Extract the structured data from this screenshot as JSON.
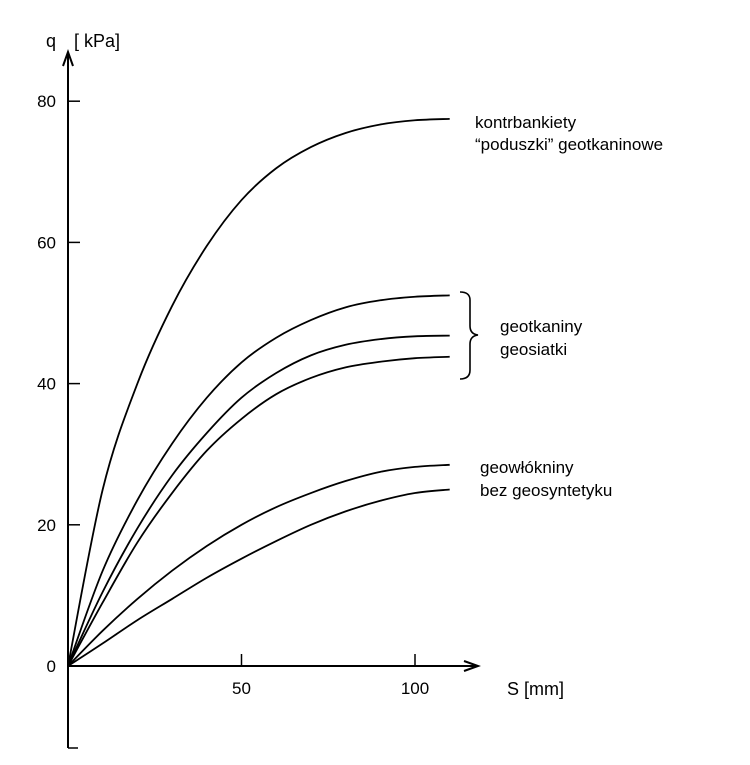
{
  "chart_data": {
    "type": "line",
    "title": "",
    "ylabel_symbol": "q",
    "ylabel_unit": "[ kPa]",
    "xlabel": "S [mm]",
    "xlim": [
      0,
      115
    ],
    "ylim": [
      -12,
      83
    ],
    "x_ticks": [
      "50",
      "100"
    ],
    "y_ticks": [
      "0",
      "20",
      "40",
      "60",
      "80"
    ],
    "x_tick_values": [
      50,
      100
    ],
    "y_tick_values": [
      0,
      20,
      40,
      60,
      80
    ],
    "grid": false,
    "series": [
      {
        "x": [
          0,
          10,
          20,
          30,
          40,
          50,
          60,
          70,
          80,
          90,
          100,
          110
        ],
        "y": [
          0,
          25,
          40,
          51,
          59.5,
          66,
          70.5,
          73.5,
          75.5,
          76.7,
          77.3,
          77.5
        ]
      },
      {
        "x": [
          0,
          10,
          20,
          30,
          40,
          50,
          60,
          70,
          80,
          90,
          100,
          110
        ],
        "y": [
          0,
          13.5,
          23.5,
          31.5,
          38,
          43,
          46.5,
          49,
          50.8,
          51.8,
          52.3,
          52.5
        ]
      },
      {
        "x": [
          0,
          10,
          20,
          30,
          40,
          50,
          60,
          70,
          80,
          90,
          100,
          110
        ],
        "y": [
          0,
          10.5,
          19.5,
          27,
          33,
          38,
          41.5,
          44,
          45.5,
          46.3,
          46.7,
          46.8
        ]
      },
      {
        "x": [
          0,
          10,
          20,
          30,
          40,
          50,
          60,
          70,
          80,
          90,
          100,
          110
        ],
        "y": [
          0,
          9,
          17.5,
          24.5,
          30.5,
          35,
          38.5,
          40.8,
          42.3,
          43.1,
          43.6,
          43.8
        ]
      },
      {
        "x": [
          0,
          10,
          20,
          30,
          40,
          50,
          60,
          70,
          80,
          90,
          100,
          110
        ],
        "y": [
          0,
          5,
          9.5,
          13.5,
          17,
          20,
          22.5,
          24.5,
          26.2,
          27.5,
          28.2,
          28.5
        ]
      },
      {
        "x": [
          0,
          10,
          20,
          30,
          40,
          50,
          60,
          70,
          80,
          90,
          100,
          110
        ],
        "y": [
          0,
          3.2,
          6.5,
          9.5,
          12.5,
          15.2,
          17.7,
          20,
          21.9,
          23.4,
          24.5,
          25
        ]
      }
    ],
    "annotations": [
      {
        "lines": [
          "kontrbankiety",
          "“poduszki” geotkaninowe"
        ]
      },
      {
        "lines": [
          "geotkaniny",
          "geosiatki"
        ],
        "brace": true
      },
      {
        "lines": [
          "geowłókniny",
          "bez geosyntetyku"
        ]
      }
    ]
  }
}
